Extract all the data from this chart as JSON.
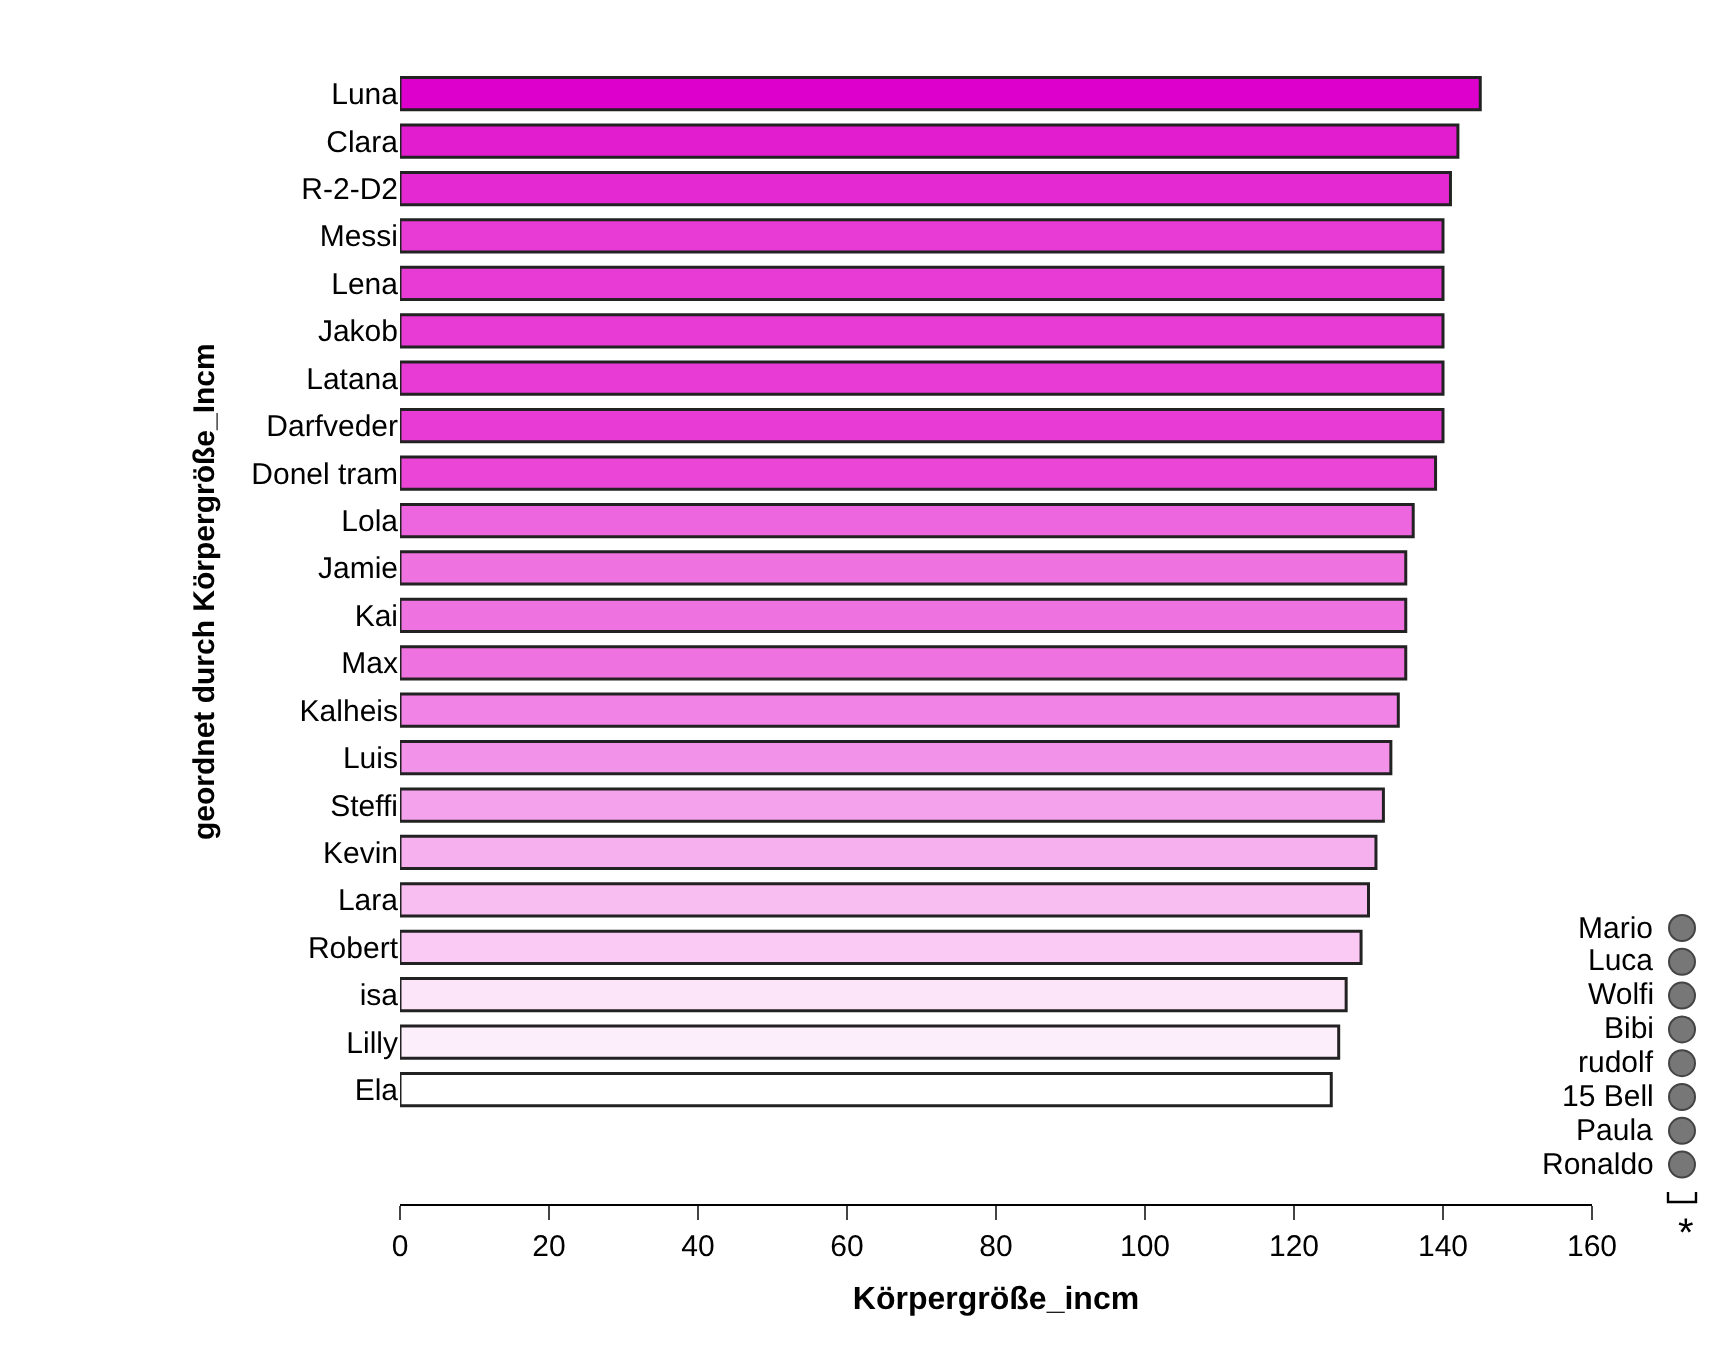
{
  "chart_data": {
    "type": "bar",
    "orientation": "horizontal",
    "xlabel": "Körpergröße_incm",
    "ylabel": "geordnet durch Körpergröße_Incm",
    "categories": [
      "Luna",
      "Clara",
      "R-2-D2",
      "Messi",
      "Lena",
      "Jakob",
      "Latana",
      "Darfveder",
      "Donel tram",
      "Lola",
      "Jamie",
      "Kai",
      "Max",
      "Kalheis",
      "Luis",
      "Steffi",
      "Kevin",
      "Lara",
      "Robert",
      "isa",
      "Lilly",
      "Ela"
    ],
    "values": [
      145,
      142,
      141,
      140,
      140,
      140,
      140,
      140,
      139,
      136,
      135,
      135,
      135,
      134,
      133,
      132,
      131,
      130,
      129,
      127,
      126,
      125
    ],
    "colors": [
      "#dd00cc",
      "#e21ccf",
      "#e529d2",
      "#e83ad5",
      "#e83ad5",
      "#e83ad5",
      "#e83ad5",
      "#e83ad5",
      "#ea45d7",
      "#ee66df",
      "#ef72e1",
      "#ef72e1",
      "#ef72e1",
      "#f083e5",
      "#f292e8",
      "#f4a2eb",
      "#f6b0ee",
      "#f8bdf1",
      "#facaf4",
      "#fce4f9",
      "#fdeefb",
      "#ffffff"
    ],
    "xlim": [
      0,
      160
    ],
    "xticks": [
      0,
      20,
      40,
      60,
      80,
      100,
      120,
      140,
      160
    ],
    "annotations": [
      "Mario",
      "Luca",
      "Wolfi",
      "Bibi",
      "rudolf",
      "15 Bell",
      "Paula",
      "Ronaldo",
      "*"
    ]
  }
}
